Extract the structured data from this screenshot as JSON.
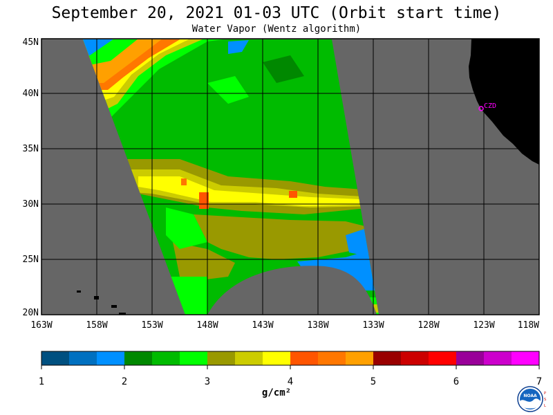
{
  "title": "September 20, 2021  01-03 UTC  (Orbit start time)",
  "subtitle": "Water Vapor (Wentz algorithm)",
  "map": {
    "lat_labels": [
      "45N",
      "40N",
      "35N",
      "30N",
      "25N",
      "20N"
    ],
    "lon_labels": [
      "163W",
      "158W",
      "153W",
      "148W",
      "143W",
      "138W",
      "133W",
      "128W",
      "123W",
      "118W"
    ],
    "station_label": "CZD",
    "colors": {
      "ocean": "#666666",
      "land": "#000000",
      "station": "#ff00ff"
    }
  },
  "colorbar": {
    "ticks": [
      "1",
      "2",
      "3",
      "4",
      "5",
      "6",
      "7"
    ],
    "units": "g/cm²",
    "colors": [
      "#005080",
      "#0070c0",
      "#0090ff",
      "#008800",
      "#00bb00",
      "#00ff00",
      "#999900",
      "#cccc00",
      "#ffff00",
      "#ff5500",
      "#ff7700",
      "#ffa000",
      "#990000",
      "#cc0000",
      "#ff0000",
      "#990099",
      "#cc00cc",
      "#ff00ff"
    ]
  },
  "logo": {
    "text": "NOAA",
    "side_letters": [
      "P",
      "S",
      "L"
    ]
  }
}
